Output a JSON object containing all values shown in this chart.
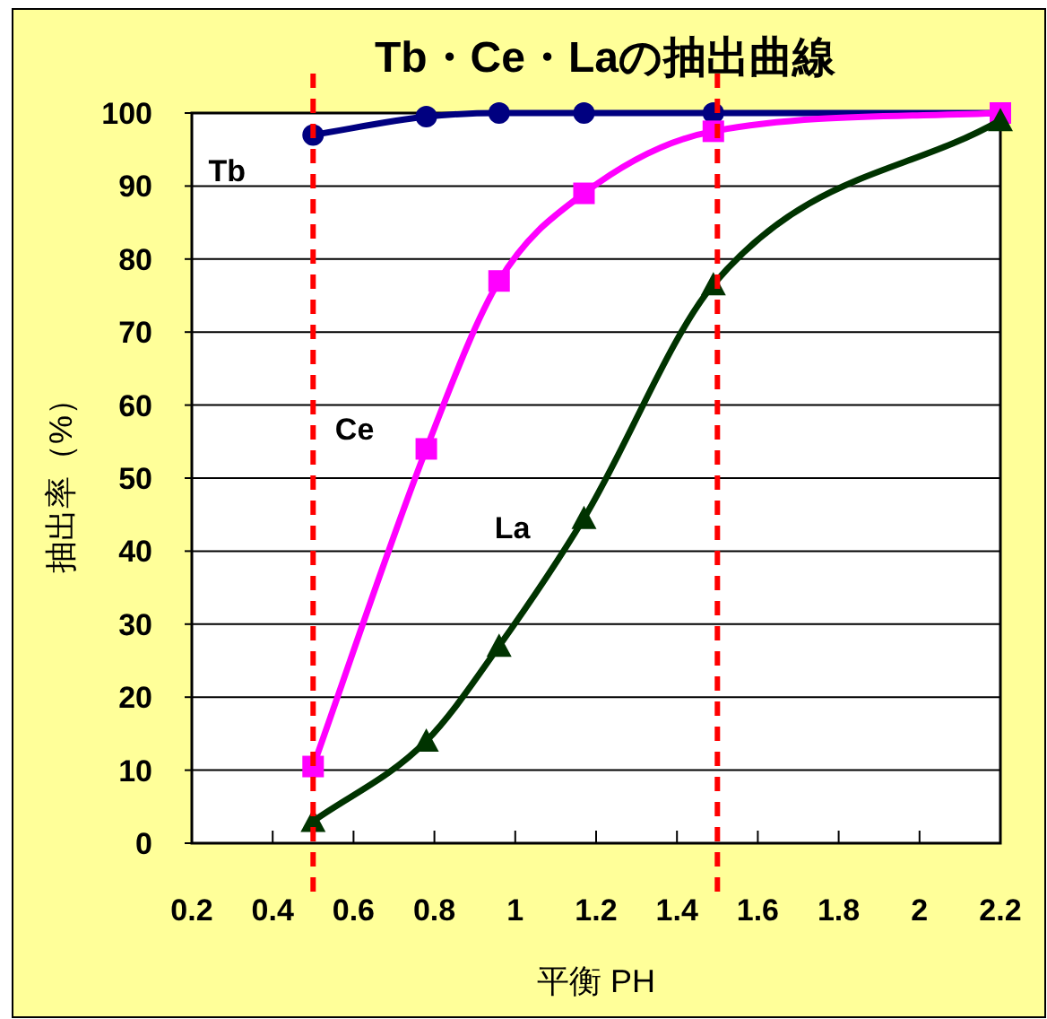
{
  "chart_data": {
    "type": "line",
    "title": "Tb・Ce・Laの抽出曲線",
    "xlabel": "平衡 PH",
    "ylabel": "抽出率（%）",
    "xlim": [
      0.2,
      2.2
    ],
    "xticks": [
      0.2,
      0.4,
      0.6,
      0.8,
      1,
      1.2,
      1.4,
      1.6,
      1.8,
      2,
      2.2
    ],
    "ylim": [
      0,
      100
    ],
    "yticks": [
      0,
      10,
      20,
      30,
      40,
      50,
      60,
      70,
      80,
      90,
      100
    ],
    "grid": "y",
    "line_style": "solid",
    "series": [
      {
        "name": "Tb",
        "color": "#000080",
        "marker": "circle",
        "x": [
          0.5,
          0.78,
          0.96,
          1.17,
          1.49,
          2.2
        ],
        "values": [
          97,
          99.5,
          100,
          100,
          100,
          100
        ]
      },
      {
        "name": "Ce",
        "color": "#ff00ff",
        "marker": "square",
        "x": [
          0.5,
          0.78,
          0.96,
          1.17,
          1.49,
          2.2
        ],
        "values": [
          10.5,
          54,
          77,
          89,
          97.5,
          100
        ]
      },
      {
        "name": "La",
        "color": "#003300",
        "marker": "triangle",
        "x": [
          0.5,
          0.78,
          0.96,
          1.17,
          1.49,
          2.2
        ],
        "values": [
          3,
          14,
          27,
          44.5,
          76.5,
          99
        ]
      }
    ],
    "ref_lines": [
      {
        "axis": "x",
        "value": 0.5,
        "color": "#ff0000",
        "line_style": "dashed"
      },
      {
        "axis": "x",
        "value": 1.5,
        "color": "#ff0000",
        "line_style": "dashed"
      }
    ]
  }
}
